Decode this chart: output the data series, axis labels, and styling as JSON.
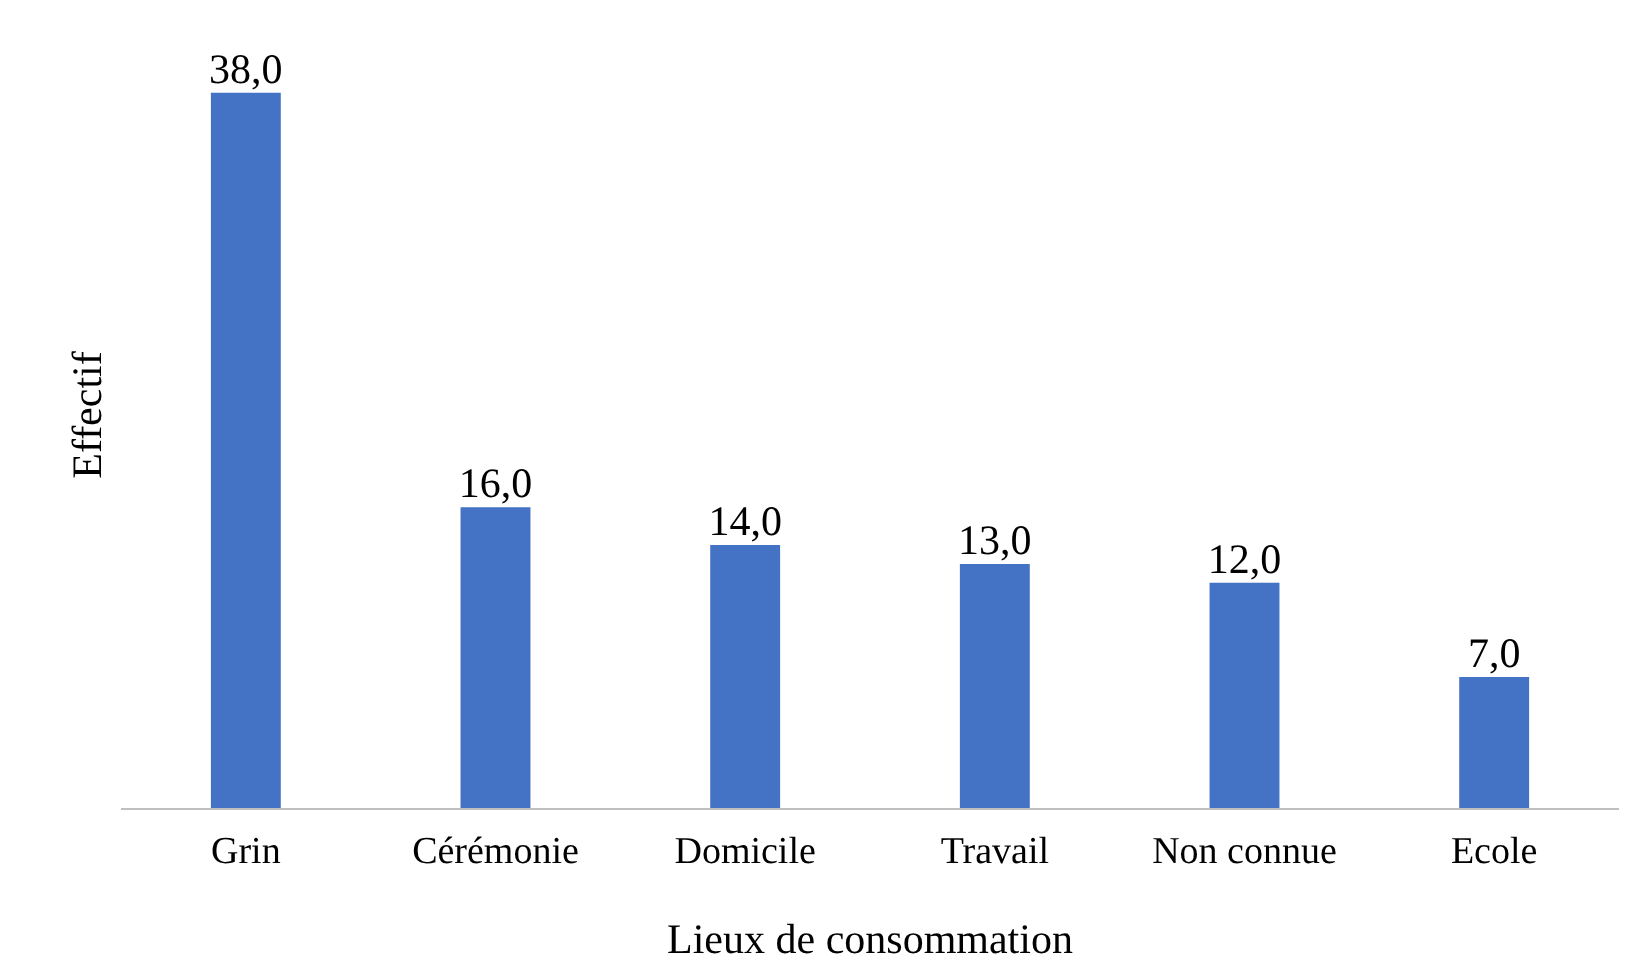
{
  "chart_data": {
    "type": "bar",
    "xlabel": "Lieux de consommation",
    "ylabel": "Effectif",
    "categories": [
      "Grin",
      "Cérémonie",
      "Domicile",
      "Travail",
      "Non connue",
      "Ecole"
    ],
    "values": [
      38,
      16,
      14,
      13,
      12,
      7
    ],
    "value_labels": [
      "38,0",
      "16,0",
      "14,0",
      "13,0",
      "12,0",
      "7,0"
    ],
    "color": "#4472c4",
    "grid": false
  }
}
